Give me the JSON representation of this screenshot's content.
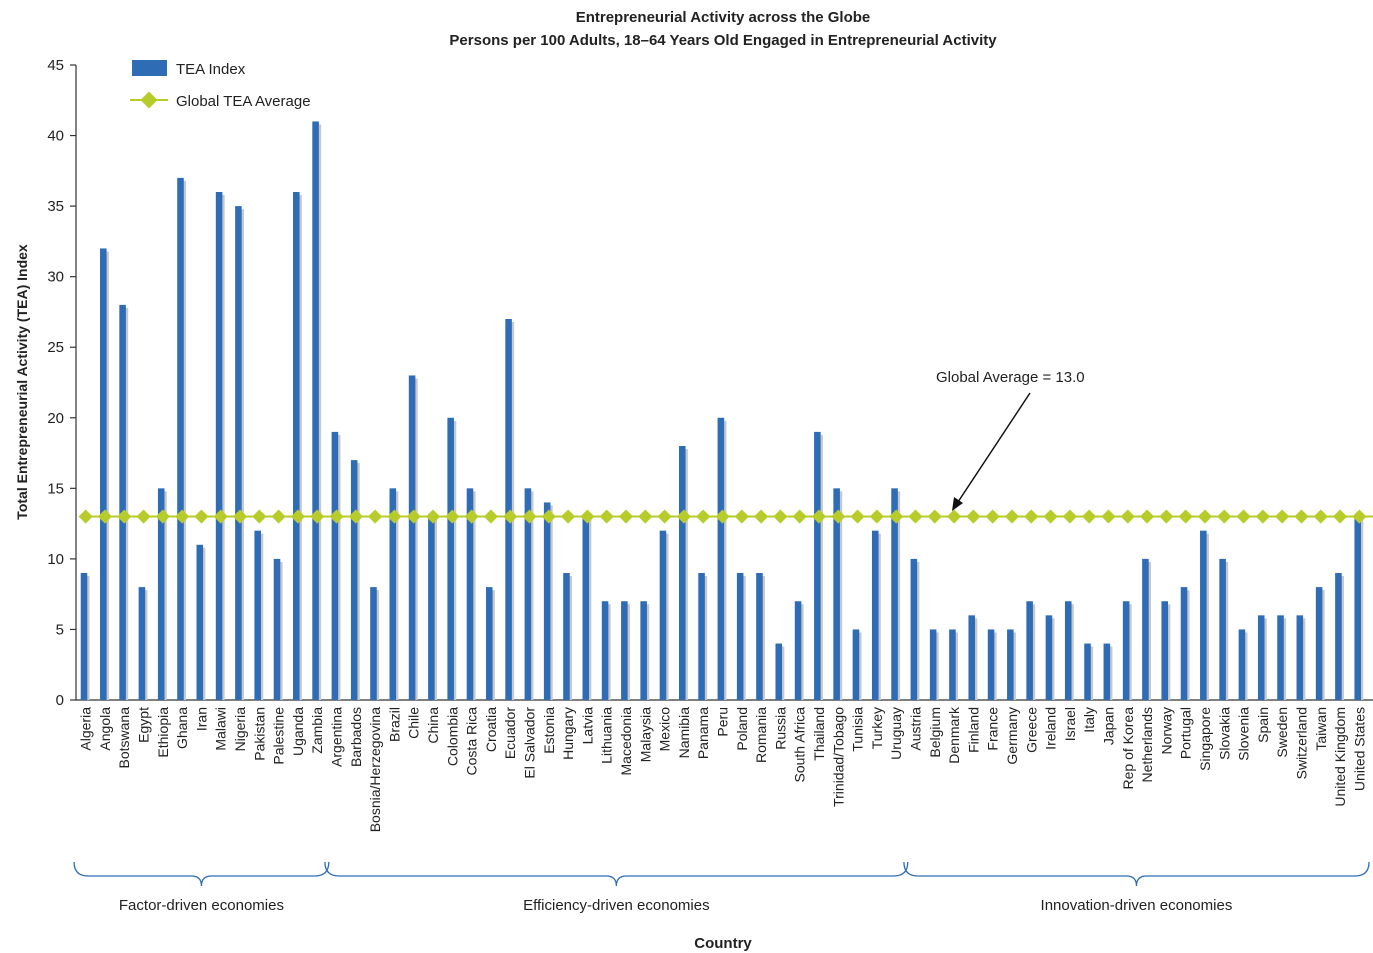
{
  "chart_data": {
    "type": "bar",
    "title": "Entrepreneurial Activity across the Globe",
    "subtitle": "Persons per 100 Adults, 18–64 Years Old Engaged in Entrepreneurial Activity",
    "xlabel": "Country",
    "ylabel": "Total Entrepreneurial Activity (TEA) Index",
    "ylim": [
      0,
      45
    ],
    "yticks": [
      "0",
      "5",
      "10",
      "15",
      "20",
      "25",
      "30",
      "35",
      "40",
      "45"
    ],
    "grid": false,
    "legend_position": "top-left",
    "categories": [
      "Algeria",
      "Angola",
      "Botswana",
      "Egypt",
      "Ethiopia",
      "Ghana",
      "Iran",
      "Malawi",
      "Nigeria",
      "Pakistan",
      "Palestine",
      "Uganda",
      "Zambia",
      "Argentina",
      "Barbados",
      "Bosnia/Herzegovina",
      "Brazil",
      "Chile",
      "China",
      "Colombia",
      "Costa Rica",
      "Croatia",
      "Ecuador",
      "El Salvador",
      "Estonia",
      "Hungary",
      "Latvia",
      "Lithuania",
      "Macedonia",
      "Malaysia",
      "Mexico",
      "Namibia",
      "Panama",
      "Peru",
      "Poland",
      "Romania",
      "Russia",
      "South Africa",
      "Thailand",
      "Trinidad/Tobago",
      "Tunisia",
      "Turkey",
      "Uruguay",
      "Austria",
      "Belgium",
      "Denmark",
      "Finland",
      "France",
      "Germany",
      "Greece",
      "Ireland",
      "Israel",
      "Italy",
      "Japan",
      "Rep of Korea",
      "Netherlands",
      "Norway",
      "Portugal",
      "Singapore",
      "Slovakia",
      "Slovenia",
      "Spain",
      "Sweden",
      "Switzerland",
      "Taiwan",
      "United Kingdom",
      "United States"
    ],
    "series": [
      {
        "name": "TEA Index",
        "color": "#2e6db5",
        "values": [
          9,
          32,
          28,
          8,
          15,
          37,
          11,
          36,
          35,
          12,
          10,
          36,
          41,
          19,
          17,
          8,
          15,
          23,
          13,
          20,
          15,
          8,
          27,
          15,
          14,
          9,
          13,
          7,
          7,
          7,
          12,
          18,
          9,
          20,
          9,
          9,
          4,
          7,
          19,
          15,
          5,
          12,
          15,
          10,
          5,
          5,
          6,
          5,
          5,
          7,
          6,
          7,
          4,
          4,
          7,
          10,
          7,
          8,
          12,
          10,
          5,
          6,
          6,
          6,
          8,
          9,
          13
        ]
      },
      {
        "name": "Global TEA Average",
        "color": "#b7cc2a",
        "value": 13.0
      }
    ],
    "annotation": "Global Average = 13.0",
    "groups": [
      {
        "label": "Factor-driven economies",
        "from": 0,
        "to": 12
      },
      {
        "label": "Efficiency-driven economies",
        "from": 13,
        "to": 42
      },
      {
        "label": "Innovation-driven economies",
        "from": 43,
        "to": 66
      }
    ]
  }
}
